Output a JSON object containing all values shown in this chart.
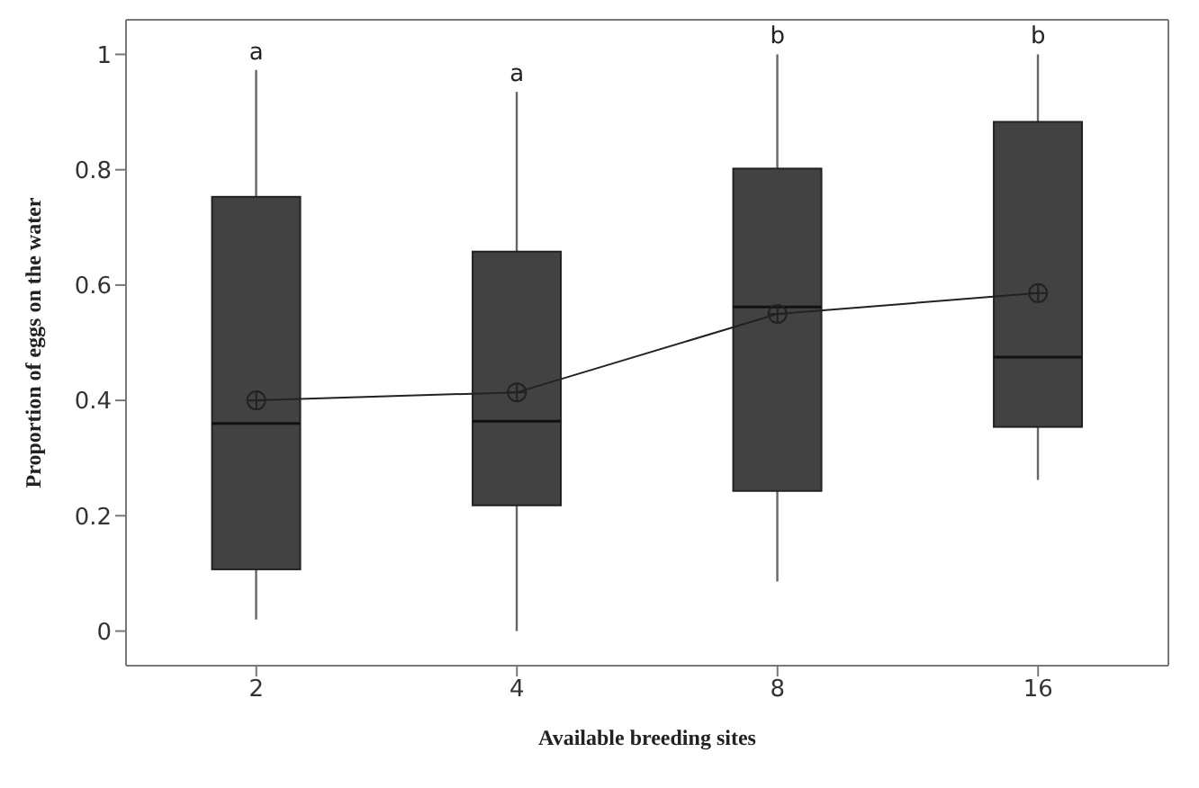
{
  "chart_data": {
    "type": "box",
    "xlabel": "Available breeding sites",
    "ylabel": "Proportion of eggs on the water",
    "categories": [
      "2",
      "4",
      "8",
      "16"
    ],
    "color": "#424242",
    "ylim": [
      -0.06,
      1.06
    ],
    "yticks": [
      0,
      0.2,
      0.4,
      0.6,
      0.8,
      1
    ],
    "boxes": [
      {
        "low": 0.02,
        "q1": 0.107,
        "median": 0.36,
        "q3": 0.753,
        "high": 0.973
      },
      {
        "low": 0,
        "q1": 0.218,
        "median": 0.364,
        "q3": 0.658,
        "high": 0.935
      },
      {
        "low": 0.086,
        "q1": 0.243,
        "median": 0.562,
        "q3": 0.802,
        "high": 1.0
      },
      {
        "low": 0.262,
        "q1": 0.354,
        "median": 0.475,
        "q3": 0.883,
        "high": 1.0
      }
    ],
    "series": [
      {
        "type": "line",
        "x": [
          "2",
          "4",
          "8",
          "16"
        ],
        "values": [
          0.4,
          0.414,
          0.55,
          0.586
        ],
        "color": "#222222",
        "marker": "circle"
      }
    ],
    "annotations": [
      "a",
      "a",
      "b",
      "b"
    ]
  }
}
